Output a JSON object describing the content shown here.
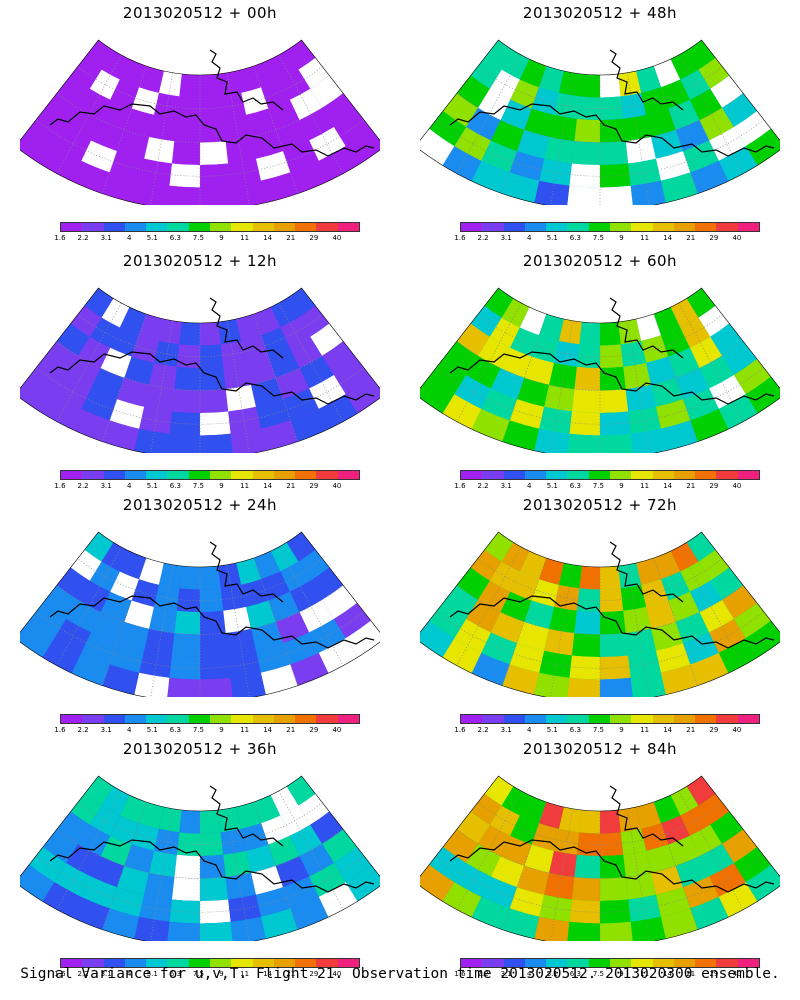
{
  "panels": [
    {
      "title": "2013020512 + 00h",
      "intensity": 0.05
    },
    {
      "title": "2013020512 + 48h",
      "intensity": 0.55
    },
    {
      "title": "2013020512 + 12h",
      "intensity": 0.2
    },
    {
      "title": "2013020512 + 60h",
      "intensity": 0.65
    },
    {
      "title": "2013020512 + 24h",
      "intensity": 0.3
    },
    {
      "title": "2013020512 + 72h",
      "intensity": 0.78
    },
    {
      "title": "2013020512 + 36h",
      "intensity": 0.4
    },
    {
      "title": "2013020512 + 84h",
      "intensity": 0.88
    }
  ],
  "colorbar": {
    "colors": [
      "#a020f0",
      "#7a3df0",
      "#3050f0",
      "#1a8cf0",
      "#00c8d0",
      "#00d8a0",
      "#00d000",
      "#90e000",
      "#e6e600",
      "#e6c000",
      "#e6a000",
      "#f07000",
      "#f03c3c",
      "#f0207f"
    ],
    "labels": [
      "1.6",
      "2.2",
      "3.1",
      "4",
      "5.1",
      "6.3",
      "7.5",
      "9",
      "11",
      "14",
      "21",
      "29",
      "40"
    ]
  },
  "caption": "Signal Variance for u,v,T. Flight 21. Observation time 2013020512. 2013020300 ensemble."
}
